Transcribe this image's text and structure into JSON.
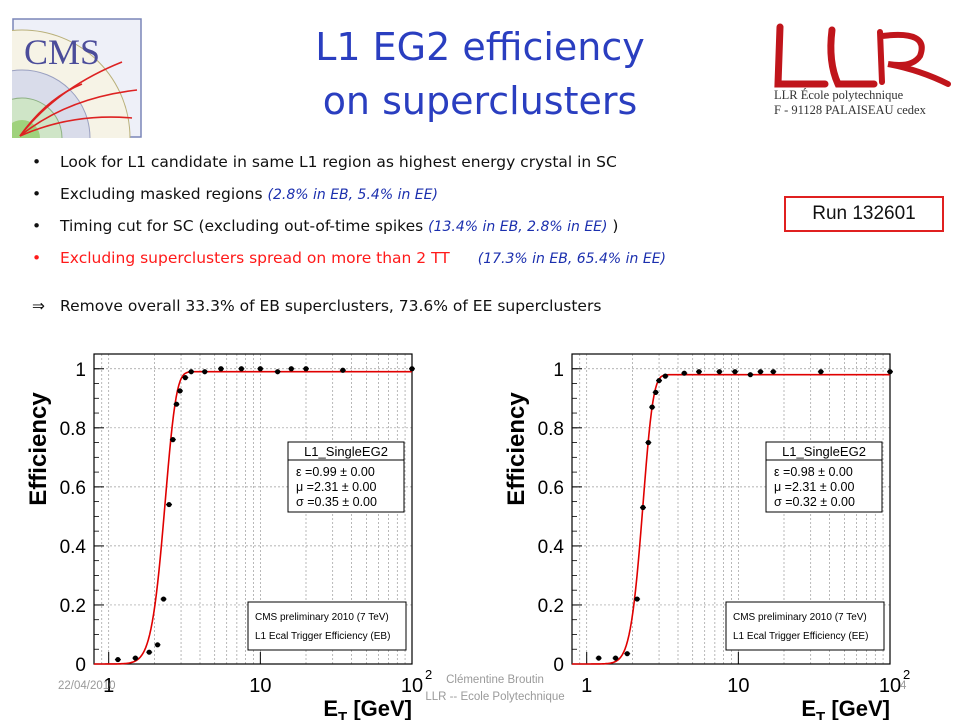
{
  "slide": {
    "title_line1": "L1 EG2 efficiency",
    "title_line2": "on superclusters",
    "logo_cms": "CMS",
    "llr_line1": "LLR École polytechnique",
    "llr_line2": "F - 91128 PALAISEAU cedex",
    "bullets": [
      {
        "text": "Look for L1 candidate in same L1 region as highest energy crystal in SC",
        "note": ""
      },
      {
        "text": "Excluding masked regions ",
        "note": "(2.8% in EB, 5.4% in EE)"
      },
      {
        "text": "Timing cut for SC (excluding out-of-time spikes ",
        "note": "(13.4% in EB, 2.8% in EE)",
        "suffix": " )"
      },
      {
        "text": "Excluding superclusters spread on more than 2 TT",
        "note": "(17.3% in EB, 65.4% in EE)"
      }
    ],
    "summary": "Remove overall 33.3% of EB superclusters, 73.6% of EE superclusters",
    "run_label": "Run 132601",
    "footer_date": "22/04/2010",
    "footer_author": "Clémentine Broutin",
    "footer_affil": "LLR -- Ecole Polytechnique",
    "footer_page": "4",
    "colors": {
      "title": "#2a3ec0",
      "note": "#1b2fae",
      "highlight": "#ff1a1a",
      "fit": "#e00000",
      "box": "#e02020"
    }
  },
  "chart_data": [
    {
      "type": "scatter",
      "title": "",
      "xlabel": "E_T [GeV]",
      "ylabel": "Efficiency",
      "xscale": "log",
      "xlim": [
        0.8,
        100
      ],
      "ylim": [
        0,
        1.05
      ],
      "xticks": [
        {
          "v": 1,
          "label": "1"
        },
        {
          "v": 10,
          "label": "10"
        },
        {
          "v": 100,
          "label": "10",
          "sup": "2"
        }
      ],
      "yticks": [
        0,
        0.2,
        0.4,
        0.6,
        0.8,
        1
      ],
      "grid": true,
      "legend_title": "L1_SingleEG2",
      "fit_params": [
        "ε =0.99 ± 0.00",
        "μ =2.31 ± 0.00",
        "σ =0.35 ± 0.00"
      ],
      "fit": {
        "eps": 0.99,
        "mu": 2.31,
        "sigma": 0.35
      },
      "info": [
        "CMS preliminary 2010 (7 TeV)",
        "L1 Ecal Trigger Efficiency (EB)"
      ],
      "points": [
        [
          1.15,
          0.015
        ],
        [
          1.5,
          0.02
        ],
        [
          1.85,
          0.04
        ],
        [
          2.1,
          0.065
        ],
        [
          2.3,
          0.22
        ],
        [
          2.5,
          0.54
        ],
        [
          2.65,
          0.76
        ],
        [
          2.8,
          0.88
        ],
        [
          2.95,
          0.925
        ],
        [
          3.2,
          0.97
        ],
        [
          3.5,
          0.99
        ],
        [
          4.3,
          0.99
        ],
        [
          5.5,
          1.0
        ],
        [
          7.5,
          1.0
        ],
        [
          10,
          1.0
        ],
        [
          13,
          0.99
        ],
        [
          16,
          1.0
        ],
        [
          20,
          1.0
        ],
        [
          35,
          0.995
        ],
        [
          100,
          1.0
        ]
      ]
    },
    {
      "type": "scatter",
      "title": "",
      "xlabel": "E_T [GeV]",
      "ylabel": "Efficiency",
      "xscale": "log",
      "xlim": [
        0.8,
        100
      ],
      "ylim": [
        0,
        1.05
      ],
      "xticks": [
        {
          "v": 1,
          "label": "1"
        },
        {
          "v": 10,
          "label": "10"
        },
        {
          "v": 100,
          "label": "10",
          "sup": "2"
        }
      ],
      "yticks": [
        0,
        0.2,
        0.4,
        0.6,
        0.8,
        1
      ],
      "grid": true,
      "legend_title": "L1_SingleEG2",
      "fit_params": [
        "ε =0.98 ± 0.00",
        "μ =2.31 ± 0.00",
        "σ =0.32 ± 0.00"
      ],
      "fit": {
        "eps": 0.98,
        "mu": 2.31,
        "sigma": 0.32
      },
      "info": [
        "CMS preliminary 2010 (7 TeV)",
        "L1 Ecal Trigger Efficiency (EE)"
      ],
      "points": [
        [
          1.2,
          0.02
        ],
        [
          1.55,
          0.02
        ],
        [
          1.85,
          0.035
        ],
        [
          2.15,
          0.22
        ],
        [
          2.35,
          0.53
        ],
        [
          2.55,
          0.75
        ],
        [
          2.7,
          0.87
        ],
        [
          2.85,
          0.92
        ],
        [
          3.0,
          0.96
        ],
        [
          3.3,
          0.975
        ],
        [
          4.4,
          0.985
        ],
        [
          5.5,
          0.99
        ],
        [
          7.5,
          0.99
        ],
        [
          9.5,
          0.99
        ],
        [
          12,
          0.98
        ],
        [
          14,
          0.99
        ],
        [
          17,
          0.99
        ],
        [
          35,
          0.99
        ],
        [
          100,
          0.99
        ]
      ]
    }
  ]
}
